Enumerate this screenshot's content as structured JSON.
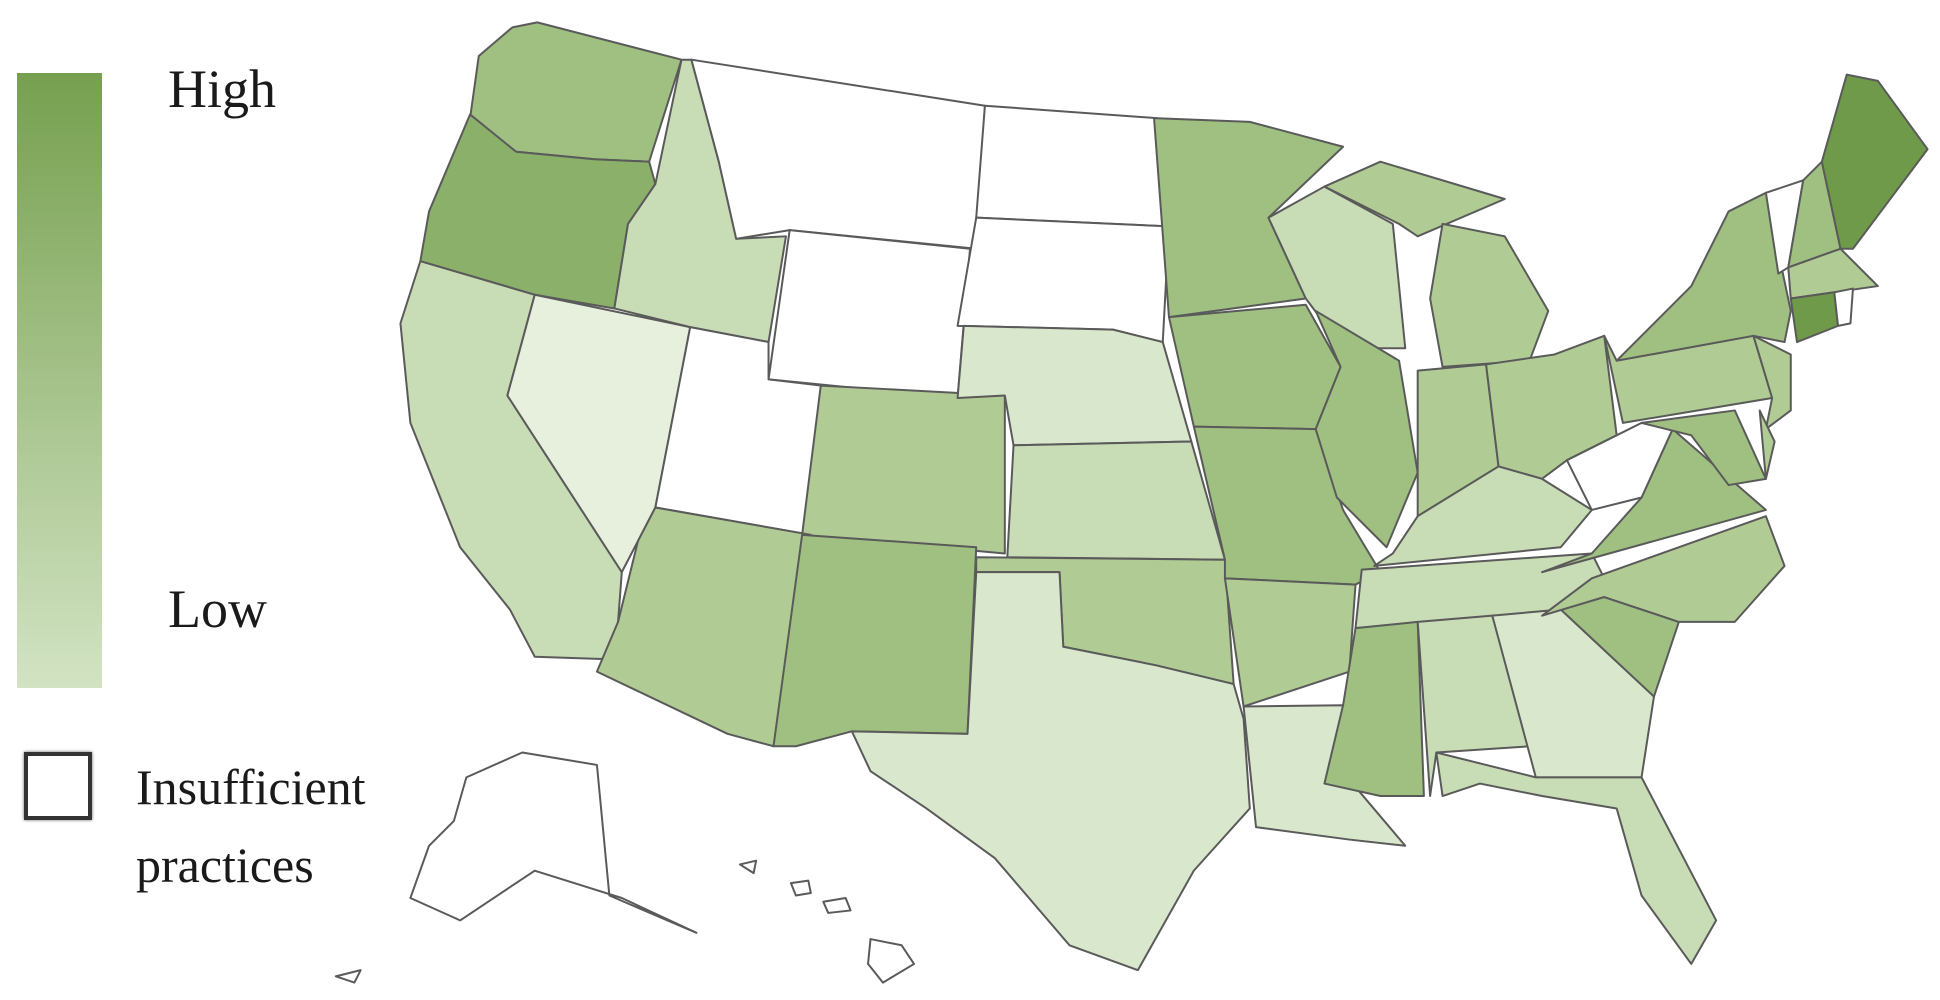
{
  "legend": {
    "high_label": "High",
    "low_label": "Low",
    "insufficient_label_line1": "Insufficient",
    "insufficient_label_line2": "practices",
    "gradient_top_color": "#76a04f",
    "gradient_bottom_color": "#d2e3c3",
    "insufficient_color": "#ffffff"
  },
  "palette": {
    "insufficient": "#ffffff",
    "1": "#e6f0dd",
    "2": "#d9e8cc",
    "3": "#c8ddb6",
    "4": "#b0cc94",
    "5": "#9fc080",
    "6": "#8bb069",
    "7": "#6f9a4a"
  },
  "states": {
    "WA": "5",
    "OR": "6",
    "CA": "3",
    "NV": "1",
    "ID": "3",
    "MT": "insufficient",
    "WY": "insufficient",
    "UT": "insufficient",
    "CO": "4",
    "AZ": "4",
    "NM": "5",
    "ND": "insufficient",
    "SD": "insufficient",
    "NE": "2",
    "KS": "3",
    "OK": "4",
    "TX": "2",
    "MN": "5",
    "IA": "5",
    "MO": "5",
    "AR": "4",
    "LA": "2",
    "WI": "3",
    "IL": "5",
    "MI": "4",
    "IN": "4",
    "OH": "4",
    "KY": "3",
    "TN": "3",
    "MS": "5",
    "AL": "3",
    "GA": "2",
    "FL": "3",
    "SC": "5",
    "NC": "4",
    "VA": "5",
    "WV": "insufficient",
    "PA": "4",
    "NY": "5",
    "NJ": "4",
    "MD": "5",
    "DE": "4",
    "VT": "insufficient",
    "NH": "5",
    "ME": "7",
    "MA": "4",
    "CT": "7",
    "RI": "insufficient",
    "AK": "insufficient",
    "HI": "insufficient"
  }
}
